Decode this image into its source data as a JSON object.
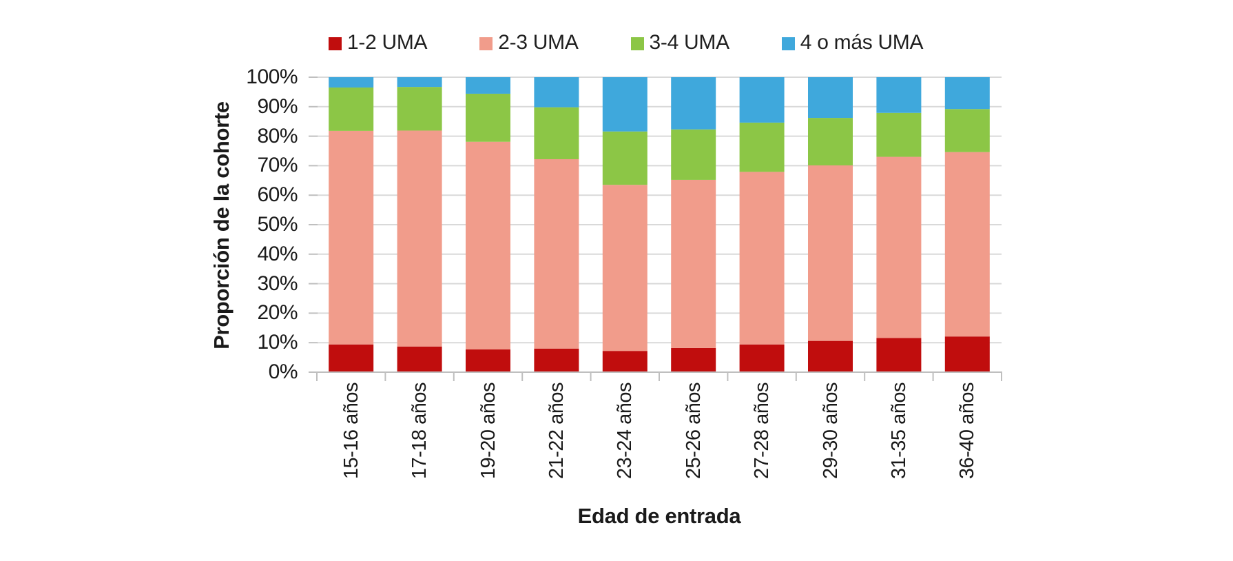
{
  "chart_data": {
    "type": "bar",
    "stacked": true,
    "stack_unit": "percent",
    "title": "",
    "xlabel": "Edad de entrada",
    "ylabel": "Proporción de la cohorte",
    "ylim": [
      0,
      100
    ],
    "y_ticks": [
      "0%",
      "10%",
      "20%",
      "30%",
      "40%",
      "50%",
      "60%",
      "70%",
      "80%",
      "90%",
      "100%"
    ],
    "categories": [
      "15-16 años",
      "17-18 años",
      "19-20 años",
      "21-22 años",
      "23-24 años",
      "25-26 años",
      "27-28 años",
      "29-30 años",
      "31-35 años",
      "36-40 años"
    ],
    "series": [
      {
        "name": "1-2 UMA",
        "color": "#C00D0D",
        "values": [
          9.4,
          8.7,
          7.7,
          8.0,
          7.2,
          8.2,
          9.4,
          10.6,
          11.6,
          12.1
        ]
      },
      {
        "name": "2-3 UMA",
        "color": "#F19C8B",
        "values": [
          72.4,
          73.2,
          70.4,
          64.2,
          56.3,
          57.0,
          58.5,
          59.5,
          61.4,
          62.5
        ]
      },
      {
        "name": "3-4 UMA",
        "color": "#8CC646",
        "values": [
          14.7,
          14.8,
          16.3,
          17.6,
          18.1,
          17.1,
          16.7,
          16.1,
          14.9,
          14.6
        ]
      },
      {
        "name": "4 o más UMA",
        "color": "#3FA8DC",
        "values": [
          3.5,
          3.3,
          5.6,
          10.2,
          18.4,
          17.7,
          15.4,
          13.8,
          12.1,
          10.8
        ]
      }
    ],
    "legend_position": "top",
    "grid": "horizontal",
    "gridline_color": "#D9D9D9",
    "axis_line_color": "#BFBFBF",
    "text_color": "#1A1A1A"
  }
}
